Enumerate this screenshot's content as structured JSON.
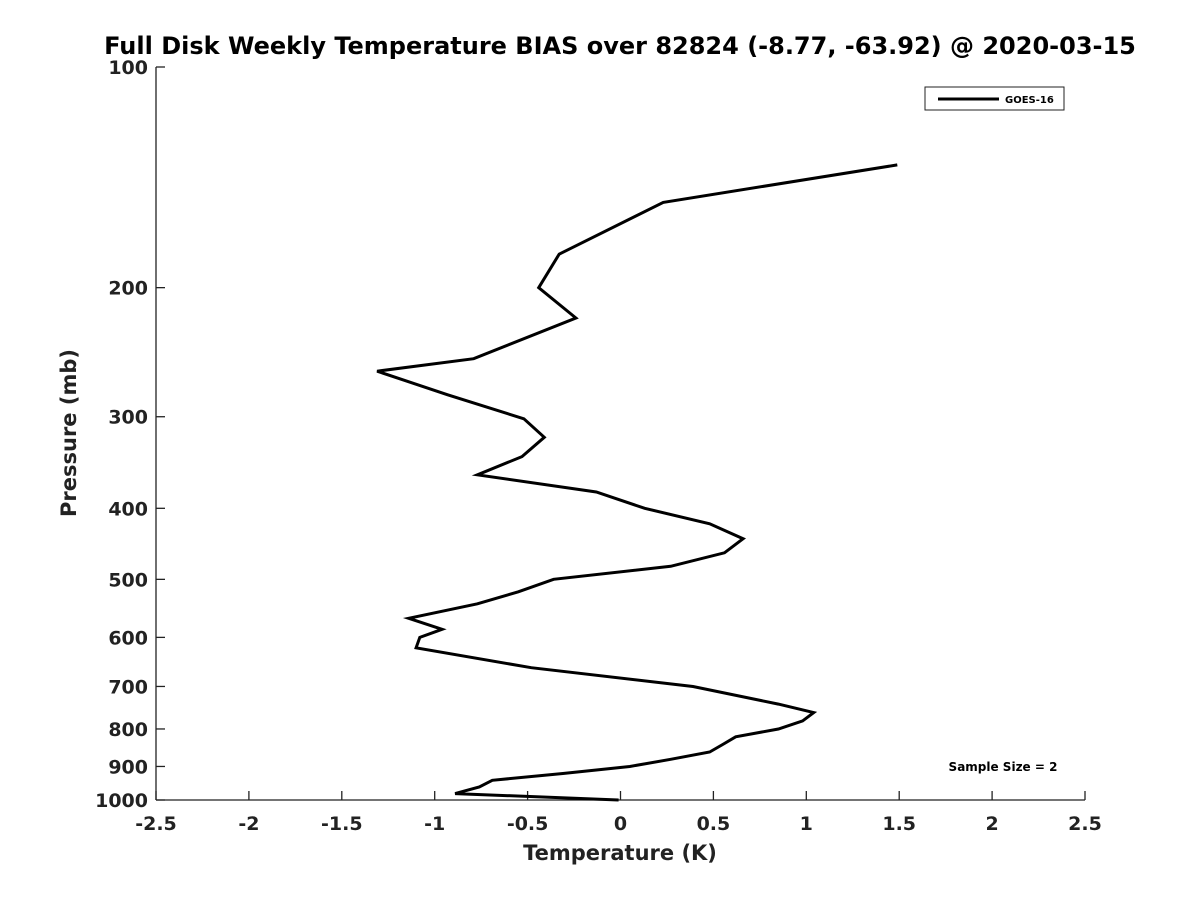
{
  "chart_data": {
    "type": "line",
    "title": "Full Disk Weekly Temperature BIAS over 82824 (-8.77, -63.92) @ 2020-03-15",
    "xlabel": "Temperature (K)",
    "ylabel": "Pressure (mb)",
    "xlim": [
      -2.5,
      2.5
    ],
    "ylim": [
      100,
      1000
    ],
    "y_scale": "log",
    "y_reversed": true,
    "x_ticks": [
      -2.5,
      -2,
      -1.5,
      -1,
      -0.5,
      0,
      0.5,
      1,
      1.5,
      2,
      2.5
    ],
    "x_tick_labels": [
      "-2.5",
      "-2",
      "-1.5",
      "-1",
      "-0.5",
      "0",
      "0.5",
      "1",
      "1.5",
      "2",
      "2.5"
    ],
    "y_ticks": [
      100,
      200,
      300,
      400,
      500,
      600,
      700,
      800,
      900,
      1000
    ],
    "y_tick_labels": [
      "100",
      "200",
      "300",
      "400",
      "500",
      "600",
      "700",
      "800",
      "900",
      "1000"
    ],
    "grid": false,
    "legend_position": "top-right",
    "annotation": "Sample Size = 2",
    "series": [
      {
        "name": "GOES-16",
        "color": "#000000",
        "points": [
          [
            1.49,
            136
          ],
          [
            0.23,
            153
          ],
          [
            -0.33,
            180
          ],
          [
            -0.44,
            200
          ],
          [
            -0.24,
            220
          ],
          [
            -0.79,
            250
          ],
          [
            -1.31,
            260
          ],
          [
            -0.93,
            280
          ],
          [
            -0.52,
            302
          ],
          [
            -0.41,
            320
          ],
          [
            -0.53,
            340
          ],
          [
            -0.77,
            360
          ],
          [
            -0.13,
            380
          ],
          [
            0.13,
            400
          ],
          [
            0.48,
            420
          ],
          [
            0.66,
            440
          ],
          [
            0.56,
            460
          ],
          [
            0.27,
            480
          ],
          [
            -0.36,
            500
          ],
          [
            -0.55,
            520
          ],
          [
            -0.77,
            540
          ],
          [
            -1.14,
            565
          ],
          [
            -0.96,
            585
          ],
          [
            -1.08,
            600
          ],
          [
            -1.1,
            620
          ],
          [
            -0.48,
            660
          ],
          [
            0.39,
            700
          ],
          [
            0.85,
            740
          ],
          [
            1.04,
            760
          ],
          [
            0.98,
            780
          ],
          [
            0.85,
            800
          ],
          [
            0.62,
            820
          ],
          [
            0.55,
            840
          ],
          [
            0.48,
            860
          ],
          [
            0.27,
            880
          ],
          [
            0.05,
            900
          ],
          [
            -0.31,
            920
          ],
          [
            -0.69,
            940
          ],
          [
            -0.76,
            960
          ],
          [
            -0.89,
            980
          ],
          [
            -0.01,
            1000
          ]
        ]
      }
    ]
  }
}
